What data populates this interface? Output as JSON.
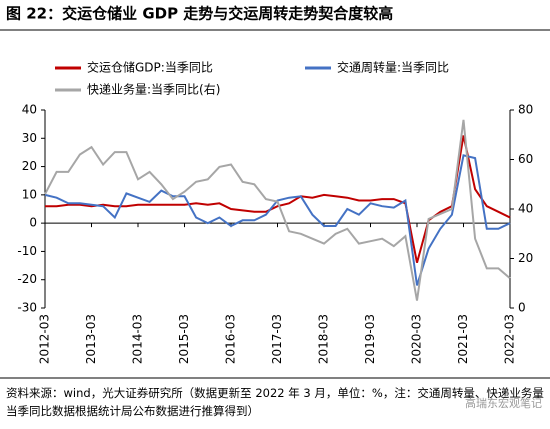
{
  "chart_data": {
    "type": "line",
    "title": "图 22：交运仓储业 GDP 走势与交运周转走势契合度较高",
    "categories": [
      "2012-03",
      null,
      null,
      null,
      "2013-03",
      null,
      null,
      null,
      "2014-03",
      null,
      null,
      null,
      "2015-03",
      null,
      null,
      null,
      "2016-03",
      null,
      null,
      null,
      "2017-03",
      null,
      null,
      null,
      "2018-03",
      null,
      null,
      null,
      "2019-03",
      null,
      null,
      null,
      "2020-03",
      null,
      null,
      null,
      "2021-03",
      null,
      null,
      null,
      "2022-03"
    ],
    "series": [
      {
        "name": "交运仓储GDP:当季同比",
        "color": "#c00000",
        "values": [
          6,
          6,
          6.5,
          6.5,
          6,
          6.5,
          6,
          6,
          6.5,
          6.5,
          6.5,
          6.5,
          6.5,
          7,
          6.5,
          7,
          5,
          4.5,
          4,
          4,
          6,
          7,
          9.5,
          9,
          10,
          9.5,
          9,
          8,
          8,
          8.5,
          8.5,
          7,
          -14,
          1,
          4,
          6,
          31,
          12,
          6,
          4,
          2
        ]
      },
      {
        "name": "交通周转量:当季同比",
        "color": "#4472c4",
        "values": [
          10,
          9,
          7,
          7,
          6.5,
          6,
          2,
          10.5,
          9,
          7.5,
          11.5,
          9.5,
          9.5,
          2,
          0,
          2,
          -1,
          1,
          1,
          3,
          8,
          9,
          9.5,
          3,
          -1,
          -1,
          5,
          3,
          7,
          6,
          5.5,
          8,
          -22,
          -9,
          -2,
          3,
          24,
          23,
          -2,
          -2,
          0
        ]
      },
      {
        "name": "快递业务量:当季同比(右)",
        "color": "#a6a6a6",
        "axis": "y2",
        "values": [
          46,
          55,
          55,
          62,
          65,
          58,
          63,
          63,
          52,
          55,
          50,
          44,
          47,
          51,
          52,
          57,
          58,
          51,
          50,
          44,
          43,
          31,
          30,
          28,
          26,
          30,
          32,
          26,
          27,
          28,
          25,
          29,
          3,
          36,
          38,
          40,
          76,
          28,
          16,
          16,
          12
        ]
      }
    ],
    "ylim": [
      -30,
      40
    ],
    "yticks": [
      -30,
      -20,
      -10,
      0,
      10,
      20,
      30,
      40
    ],
    "y2lim": [
      0,
      80
    ],
    "y2ticks": [
      0,
      20,
      40,
      60,
      80
    ],
    "source": "资料来源：wind，光大证券研究所（数据更新至 2022 年 3 月，单位：%，注：交通周转量、快递业务量当季同比数据根据统计局公布数据进行推算得到）",
    "watermark": "高瑞东宏观笔记"
  }
}
